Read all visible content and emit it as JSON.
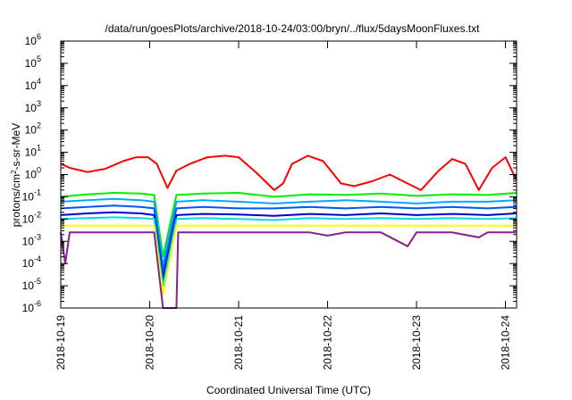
{
  "chart_data": {
    "type": "line",
    "title": "/data/run/goesPlots/archive/2018-10-24/03:00/bryn/../flux/5daysMoonFluxes.txt",
    "xlabel": "Coordinated Universal Time (UTC)",
    "ylabel": {
      "base": "protons/cm",
      "sup": "2",
      "rest": "-s-sr-MeV"
    },
    "yscale": "log",
    "ylim": [
      1e-06,
      1000000.0
    ],
    "xlim": [
      "2018-10-19 00:00",
      "2018-10-24 03:00"
    ],
    "grid": false,
    "legend": "none",
    "x_ticks": [
      "2018-10-19",
      "2018-10-20",
      "2018-10-21",
      "2018-10-22",
      "2018-10-23",
      "2018-10-24"
    ],
    "y_ticks": [
      {
        "base": "10",
        "exp": "-6"
      },
      {
        "base": "10",
        "exp": "-5"
      },
      {
        "base": "10",
        "exp": "-4"
      },
      {
        "base": "10",
        "exp": "-3"
      },
      {
        "base": "10",
        "exp": "-2"
      },
      {
        "base": "10",
        "exp": "-1"
      },
      {
        "base": "10",
        "exp": "0"
      },
      {
        "base": "10",
        "exp": "1"
      },
      {
        "base": "10",
        "exp": "2"
      },
      {
        "base": "10",
        "exp": "3"
      },
      {
        "base": "10",
        "exp": "4"
      },
      {
        "base": "10",
        "exp": "5"
      },
      {
        "base": "10",
        "exp": "6"
      }
    ],
    "series": [
      {
        "color": "#ff0000",
        "x": [
          0,
          0.1,
          0.3,
          0.5,
          0.7,
          0.85,
          0.98,
          1.08,
          1.2,
          1.3,
          1.45,
          1.65,
          1.85,
          2.0,
          2.2,
          2.4,
          2.5,
          2.6,
          2.78,
          2.95,
          3.15,
          3.3,
          3.5,
          3.7,
          3.85,
          4.05,
          4.25,
          4.4,
          4.55,
          4.7,
          4.85,
          5.0,
          5.12
        ],
        "y": [
          3,
          2,
          1.3,
          1.8,
          4,
          6,
          6,
          3,
          0.25,
          1.5,
          3,
          6,
          7,
          6,
          1.2,
          0.2,
          0.4,
          3,
          7,
          4,
          0.4,
          0.3,
          0.5,
          1,
          0.5,
          0.2,
          1.5,
          5,
          3,
          0.2,
          2,
          6,
          0.6
        ]
      },
      {
        "color": "#00ee00",
        "x": [
          0,
          0.3,
          0.6,
          0.9,
          1.05,
          1.15,
          1.3,
          1.6,
          2.0,
          2.4,
          2.8,
          3.2,
          3.6,
          4.0,
          4.4,
          4.8,
          5.12
        ],
        "y": [
          0.1,
          0.13,
          0.15,
          0.14,
          0.12,
          0.0002,
          0.12,
          0.14,
          0.15,
          0.1,
          0.13,
          0.12,
          0.14,
          0.11,
          0.13,
          0.12,
          0.15
        ]
      },
      {
        "color": "#00aaff",
        "x": [
          0,
          0.3,
          0.6,
          0.9,
          1.05,
          1.15,
          1.3,
          1.6,
          2.0,
          2.4,
          2.8,
          3.2,
          3.6,
          4.0,
          4.4,
          4.8,
          5.12
        ],
        "y": [
          0.06,
          0.07,
          0.08,
          0.07,
          0.06,
          8e-05,
          0.06,
          0.07,
          0.06,
          0.05,
          0.06,
          0.07,
          0.06,
          0.05,
          0.06,
          0.06,
          0.07
        ]
      },
      {
        "color": "#0055ff",
        "x": [
          0,
          0.3,
          0.6,
          0.9,
          1.05,
          1.15,
          1.3,
          1.6,
          2.0,
          2.4,
          2.8,
          3.2,
          3.6,
          4.0,
          4.4,
          4.8,
          5.12
        ],
        "y": [
          0.03,
          0.035,
          0.04,
          0.035,
          0.03,
          4e-05,
          0.03,
          0.035,
          0.03,
          0.03,
          0.035,
          0.03,
          0.035,
          0.03,
          0.035,
          0.03,
          0.035
        ]
      },
      {
        "color": "#0000cc",
        "x": [
          0,
          0.3,
          0.6,
          0.9,
          1.05,
          1.15,
          1.3,
          1.6,
          2.0,
          2.4,
          2.8,
          3.2,
          3.6,
          4.0,
          4.4,
          4.8,
          5.12
        ],
        "y": [
          0.015,
          0.018,
          0.02,
          0.018,
          0.015,
          2e-05,
          0.015,
          0.017,
          0.016,
          0.014,
          0.017,
          0.015,
          0.018,
          0.015,
          0.017,
          0.015,
          0.018
        ]
      },
      {
        "color": "#00dddd",
        "x": [
          0,
          0.3,
          0.6,
          0.9,
          1.05,
          1.15,
          1.3,
          1.6,
          2.0,
          2.4,
          2.8,
          3.2,
          3.6,
          4.0,
          4.4,
          4.8,
          5.12
        ],
        "y": [
          0.01,
          0.011,
          0.012,
          0.011,
          0.01,
          1e-05,
          0.01,
          0.011,
          0.01,
          0.009,
          0.011,
          0.01,
          0.011,
          0.01,
          0.011,
          0.01,
          0.011
        ]
      },
      {
        "color": "#ffff00",
        "x": [
          0,
          0.3,
          0.6,
          0.9,
          1.05,
          1.15,
          1.3,
          1.6,
          2.0,
          2.4,
          2.8,
          3.2,
          3.6,
          4.0,
          4.4,
          4.8,
          5.12
        ],
        "y": [
          0.005,
          0.005,
          0.005,
          0.005,
          0.005,
          4e-06,
          0.005,
          0.005,
          0.005,
          0.005,
          0.005,
          0.005,
          0.005,
          0.005,
          0.005,
          0.005,
          0.005
        ]
      },
      {
        "color": "#882288",
        "x": [
          0,
          0.05,
          0.1,
          0.3,
          0.6,
          0.9,
          1.05,
          1.15,
          1.3,
          1.32,
          1.34,
          1.6,
          2.0,
          2.4,
          2.8,
          3.0,
          3.2,
          3.6,
          3.9,
          4.0,
          4.4,
          4.7,
          4.8,
          5.12
        ],
        "y": [
          0.0025,
          0.0001,
          0.0025,
          0.0025,
          0.0025,
          0.0025,
          0.0025,
          1e-06,
          1e-06,
          0.0025,
          0.0025,
          0.0025,
          0.0025,
          0.0025,
          0.0025,
          0.0018,
          0.0025,
          0.0025,
          0.0006,
          0.0025,
          0.0025,
          0.0015,
          0.0025,
          0.0025
        ]
      }
    ]
  }
}
